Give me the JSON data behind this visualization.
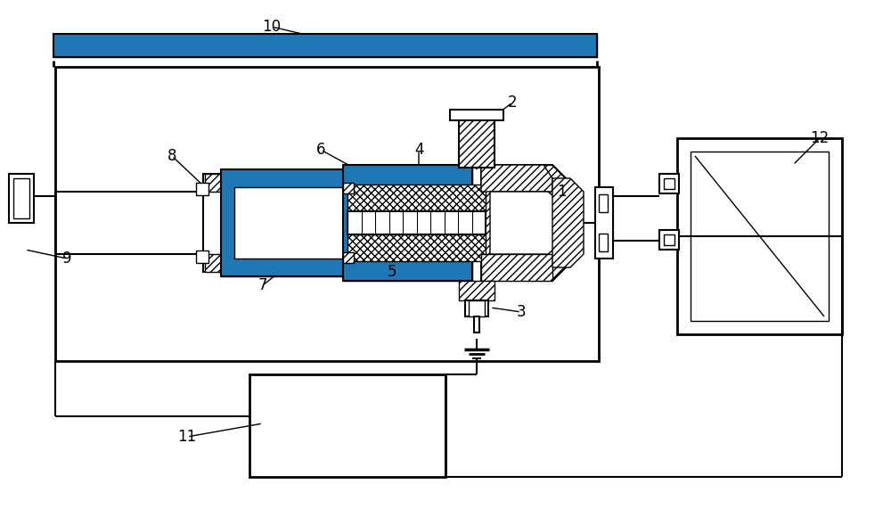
{
  "bg_color": "#ffffff",
  "fig_width": 10.0,
  "fig_height": 5.71
}
